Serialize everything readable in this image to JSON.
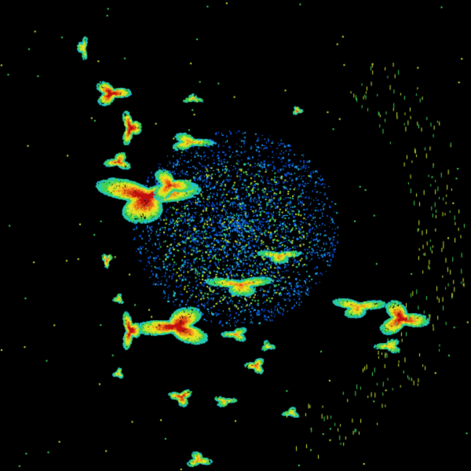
{
  "radar": {
    "background_color": "#000000",
    "reflectivity_palette": [
      "#0a4fd6",
      "#1e90e8",
      "#22c8d0",
      "#3fd45a",
      "#c8e830",
      "#f0e020",
      "#f0a020",
      "#e05018",
      "#c01010"
    ],
    "site_marker_color": "#000000"
  }
}
